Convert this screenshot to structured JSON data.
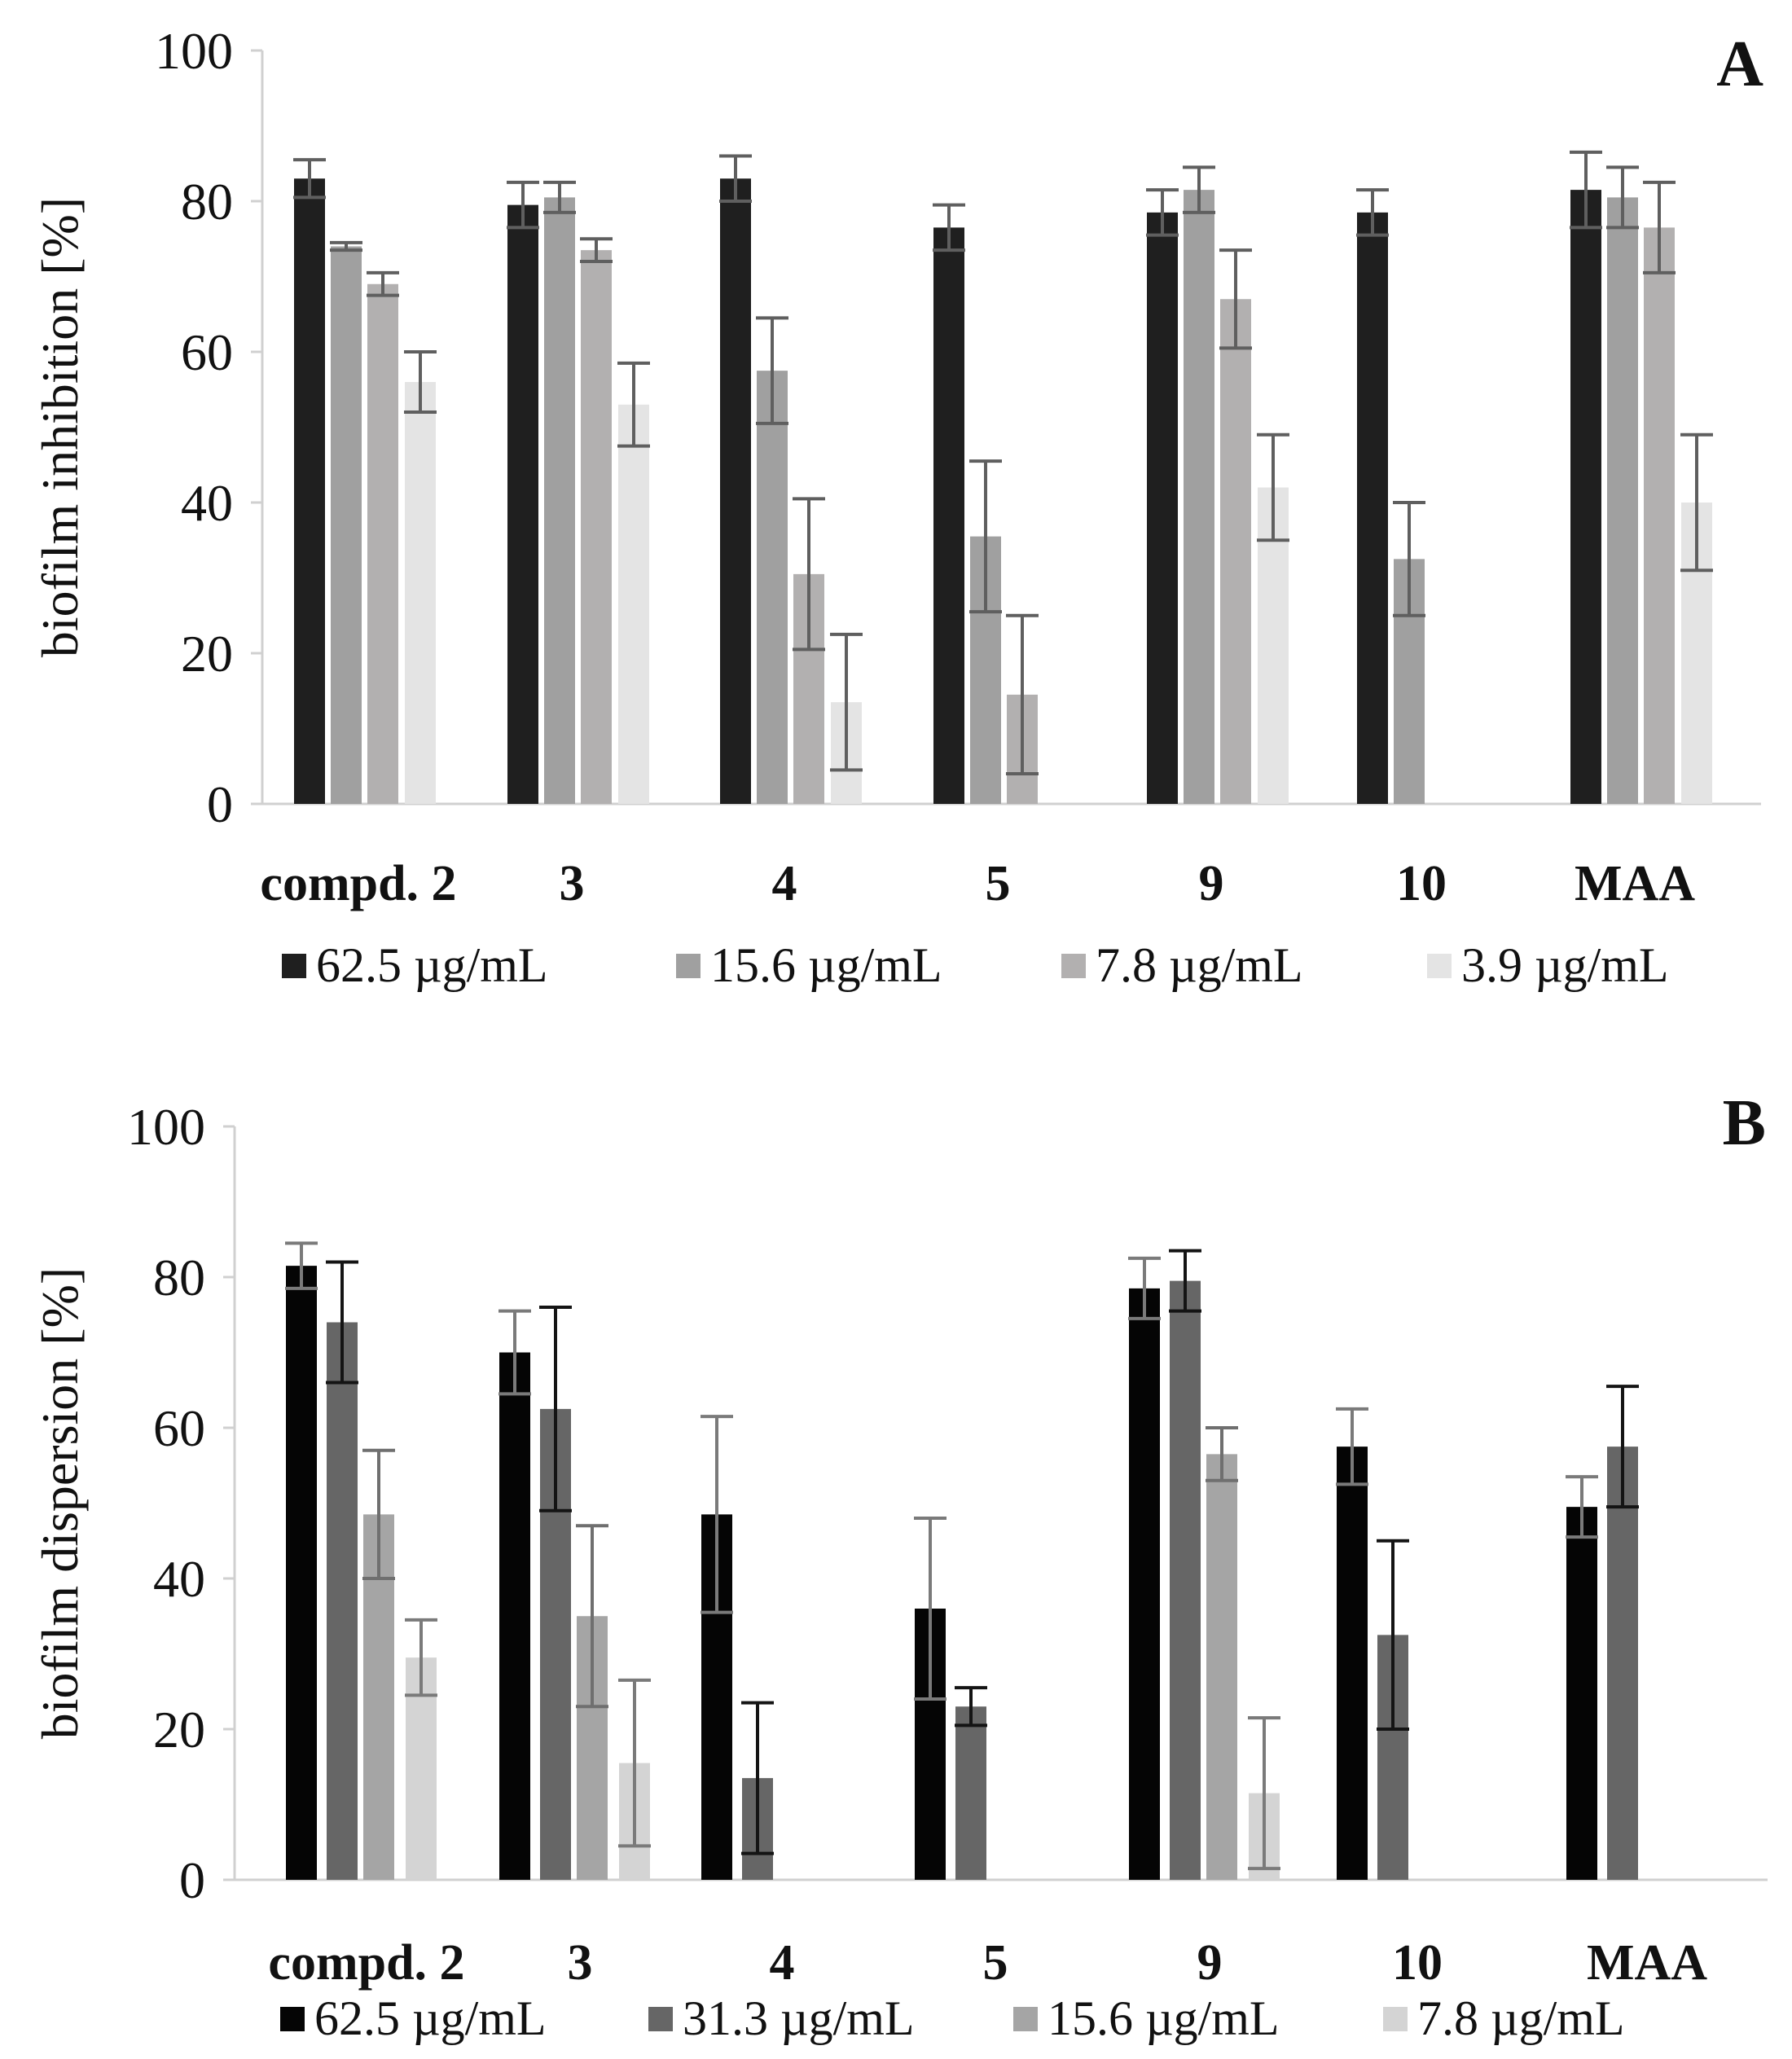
{
  "chart_data": [
    {
      "type": "bar",
      "panel_label": "A",
      "ylabel": "biofilm inhibition [%]",
      "xlabel": "",
      "ylim": [
        0,
        100
      ],
      "yticks": [
        "0",
        "20",
        "40",
        "60",
        "80",
        "100"
      ],
      "grid": false,
      "legend_position": "bottom",
      "categories": [
        "compd. 2",
        "3",
        "4",
        "5",
        "9",
        "10",
        "MAA"
      ],
      "series": [
        {
          "name": "62.5  µg/mL",
          "color": "#1f1f1f",
          "errcolor": "#5f5f5f",
          "values": [
            83,
            79.5,
            83,
            76.5,
            78.5,
            78.5,
            81.5
          ],
          "errors": [
            2.5,
            3,
            3,
            3,
            3,
            3,
            5
          ]
        },
        {
          "name": "15.6  µg/mL",
          "color": "#a0a0a0",
          "errcolor": "#5f5f5f",
          "values": [
            74,
            80.5,
            57.5,
            35.5,
            81.5,
            32.5,
            80.5
          ],
          "errors": [
            0.5,
            2,
            7,
            10,
            3,
            7.5,
            4
          ]
        },
        {
          "name": "7.8 µg/mL",
          "color": "#b2b0b0",
          "errcolor": "#5f5f5f",
          "values": [
            69,
            73.5,
            30.5,
            14.5,
            67,
            null,
            76.5
          ],
          "errors": [
            1.5,
            1.5,
            10,
            10.5,
            6.5,
            null,
            6
          ]
        },
        {
          "name": "3.9 µg/mL",
          "color": "#e4e4e4",
          "errcolor": "#5f5f5f",
          "values": [
            56,
            53,
            13.5,
            null,
            42,
            null,
            40
          ],
          "errors": [
            4,
            5.5,
            9,
            null,
            7,
            null,
            9
          ]
        }
      ]
    },
    {
      "type": "bar",
      "panel_label": "B",
      "ylabel": "biofilm dispersion [%]",
      "xlabel": "",
      "ylim": [
        0,
        100
      ],
      "yticks": [
        "0",
        "20",
        "40",
        "60",
        "80",
        "100"
      ],
      "grid": false,
      "legend_position": "bottom",
      "categories": [
        "compd. 2",
        "3",
        "4",
        "5",
        "9",
        "10",
        "MAA"
      ],
      "series": [
        {
          "name": "62.5  µg/mL",
          "color": "#050505",
          "errcolor": "#7a7a7a",
          "values": [
            81.5,
            70,
            48.5,
            36,
            78.5,
            57.5,
            49.5
          ],
          "errors": [
            3,
            5.5,
            13,
            12,
            4,
            5,
            4
          ]
        },
        {
          "name": "31.3  µg/mL",
          "color": "#666666",
          "errcolor": "#141414",
          "values": [
            74,
            62.5,
            13.5,
            23,
            79.5,
            32.5,
            57.5
          ],
          "errors": [
            8,
            13.5,
            10,
            2.5,
            4,
            12.5,
            8
          ]
        },
        {
          "name": "15.6  µg/mL",
          "color": "#a5a5a5",
          "errcolor": "#6f6f6f",
          "values": [
            48.5,
            35,
            null,
            null,
            56.5,
            null,
            null
          ],
          "errors": [
            8.5,
            12,
            null,
            null,
            3.5,
            null,
            null
          ]
        },
        {
          "name": "7.8 µg/mL",
          "color": "#d4d4d4",
          "errcolor": "#7a7a7a",
          "values": [
            29.5,
            15.5,
            null,
            null,
            11.5,
            null,
            null
          ],
          "errors": [
            5,
            11,
            null,
            null,
            10,
            null,
            null
          ]
        }
      ]
    }
  ]
}
